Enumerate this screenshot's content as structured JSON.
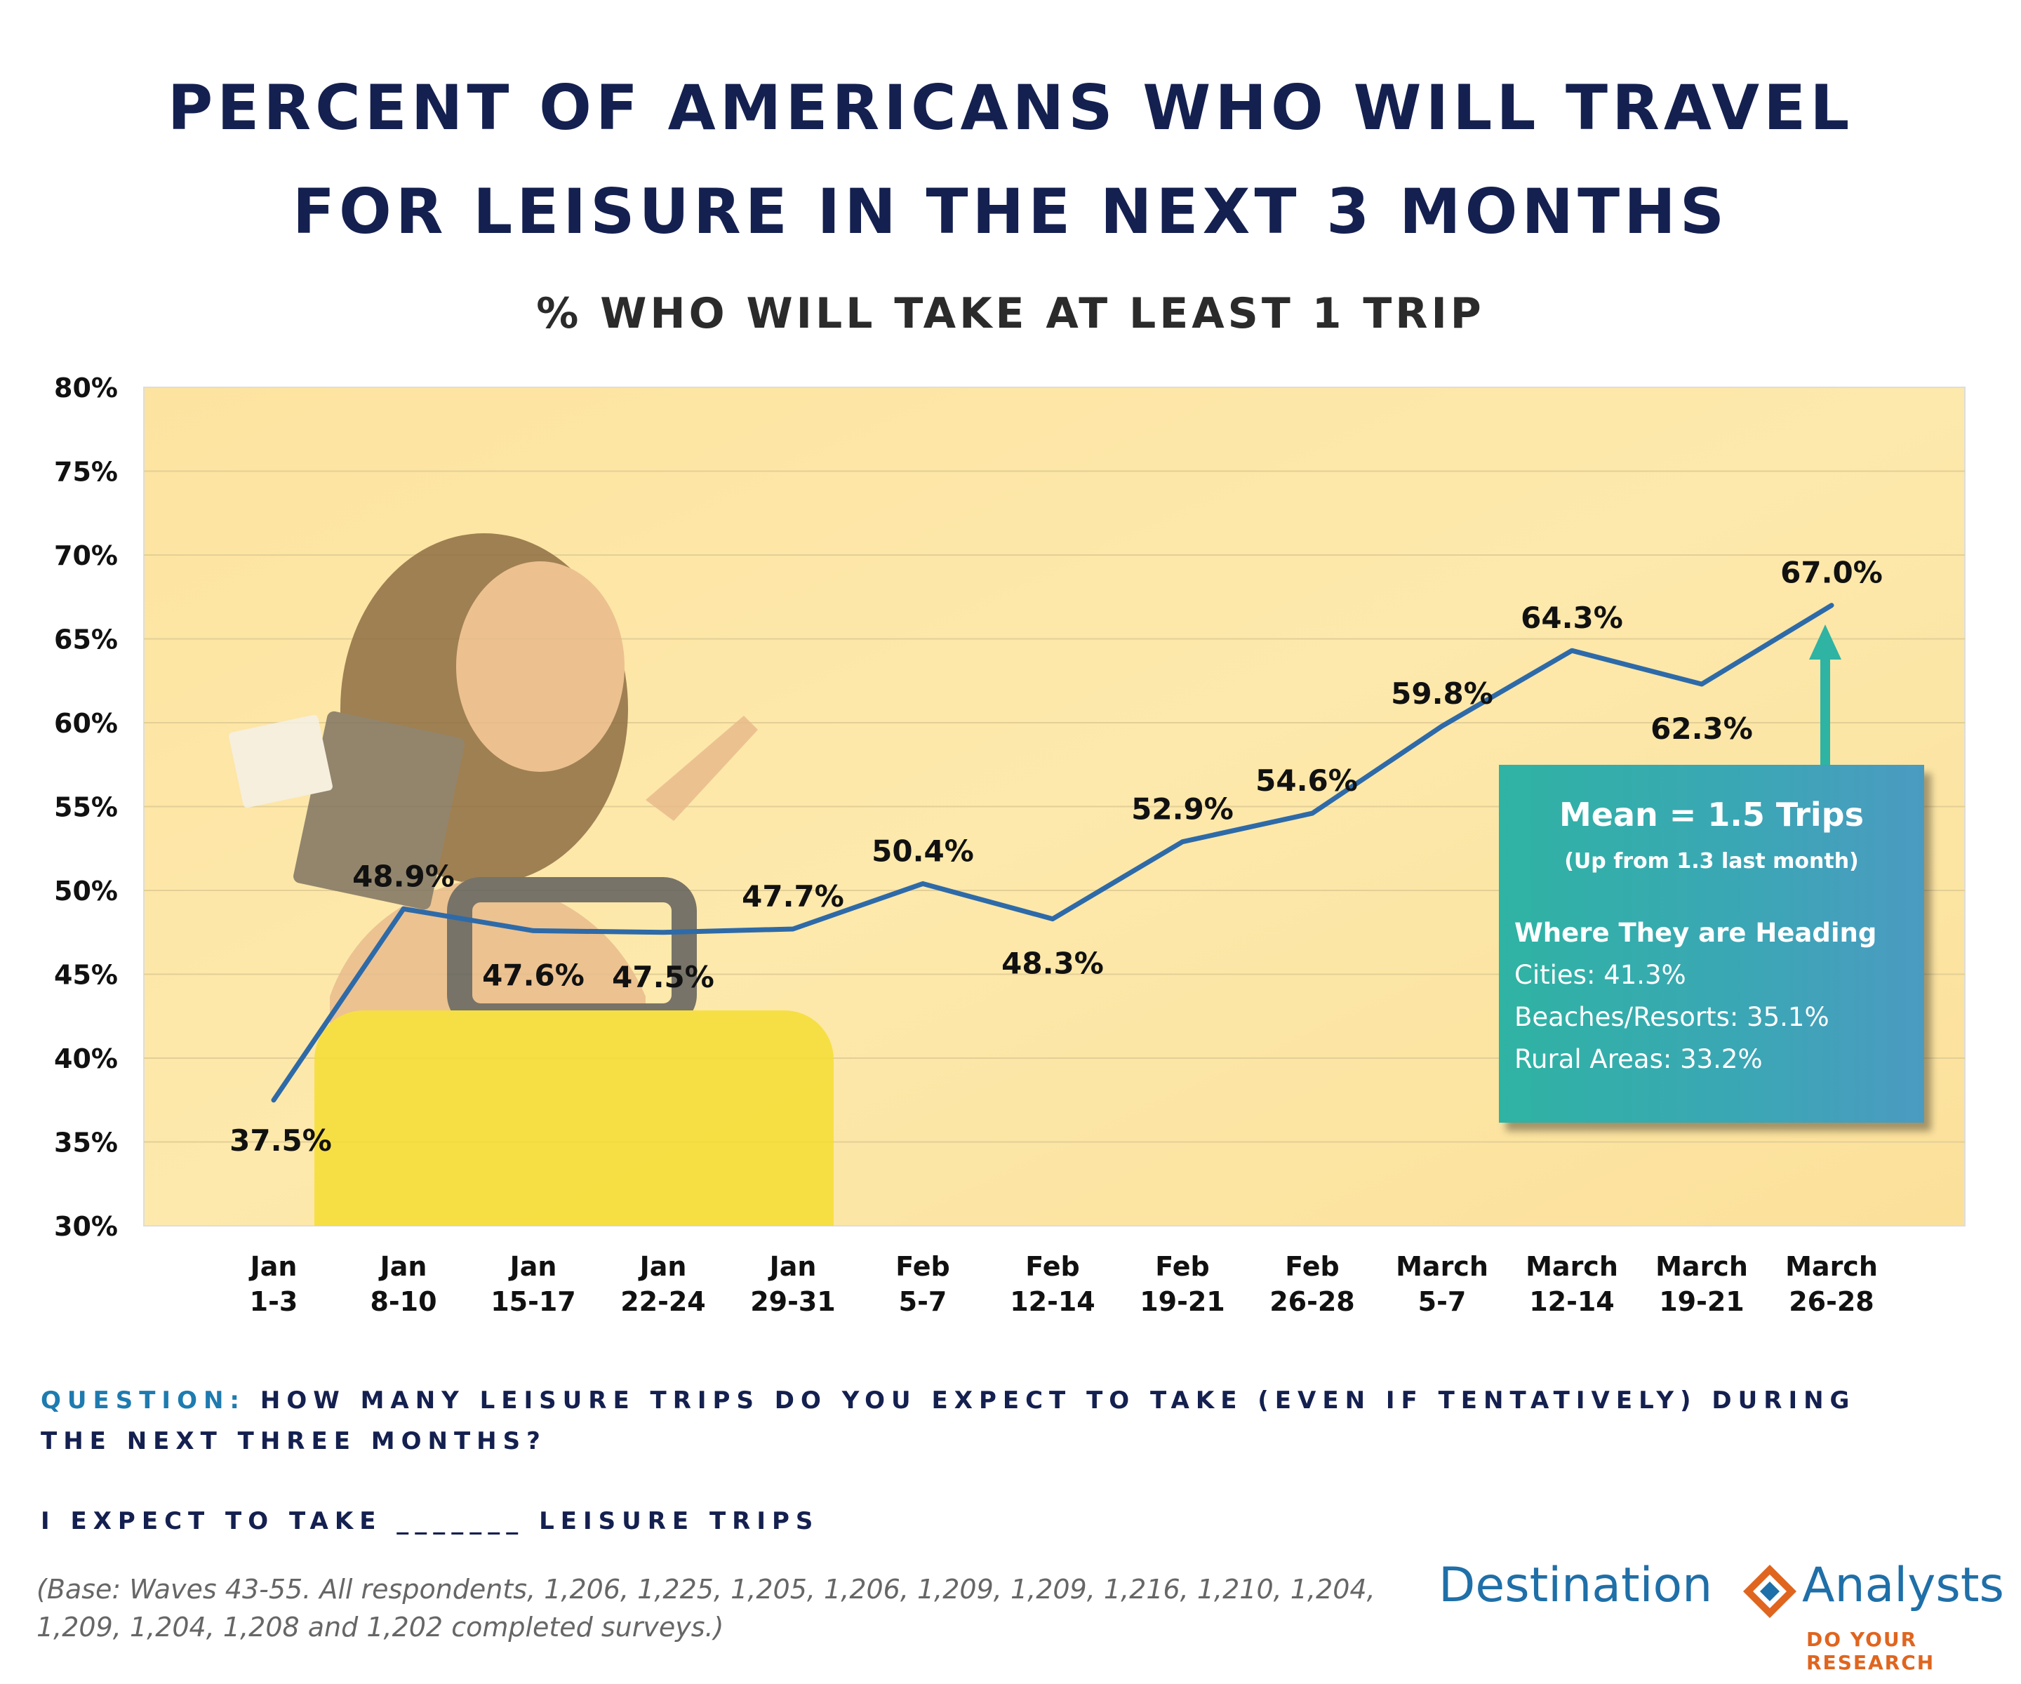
{
  "chart_data": {
    "type": "line",
    "title": "PERCENT OF AMERICANS WHO WILL TRAVEL FOR LEISURE IN THE NEXT 3 MONTHS",
    "title_lines": [
      "PERCENT OF AMERICANS WHO WILL TRAVEL",
      "FOR LEISURE IN THE NEXT 3 MONTHS"
    ],
    "subtitle": "% WHO WILL TAKE AT LEAST 1 TRIP",
    "categories": [
      [
        "Jan",
        "1-3"
      ],
      [
        "Jan",
        "8-10"
      ],
      [
        "Jan",
        "15-17"
      ],
      [
        "Jan",
        "22-24"
      ],
      [
        "Jan",
        "29-31"
      ],
      [
        "Feb",
        "5-7"
      ],
      [
        "Feb",
        "12-14"
      ],
      [
        "Feb",
        "19-21"
      ],
      [
        "Feb",
        "26-28"
      ],
      [
        "March",
        "5-7"
      ],
      [
        "March",
        "12-14"
      ],
      [
        "March",
        "19-21"
      ],
      [
        "March",
        "26-28"
      ]
    ],
    "values": [
      37.5,
      48.9,
      47.6,
      47.5,
      47.7,
      50.4,
      48.3,
      52.9,
      54.6,
      59.8,
      64.3,
      62.3,
      67.0
    ],
    "data_labels": [
      "37.5%",
      "48.9%",
      "47.6%",
      "47.5%",
      "47.7%",
      "50.4%",
      "48.3%",
      "52.9%",
      "54.6%",
      "59.8%",
      "64.3%",
      "62.3%",
      "67.0%"
    ],
    "ylim": [
      30,
      80
    ],
    "y_ticks": [
      30,
      35,
      40,
      45,
      50,
      55,
      60,
      65,
      70,
      75,
      80
    ],
    "y_tick_labels": [
      "30%",
      "35%",
      "40%",
      "45%",
      "50%",
      "55%",
      "60%",
      "65%",
      "70%",
      "75%",
      "80%"
    ],
    "grid": true,
    "line_color": "#2e6aa8"
  },
  "callout": {
    "mean": "Mean = 1.5 Trips",
    "mean_sub": "(Up from 1.3 last month)",
    "heading": "Where They are Heading",
    "items": [
      "Cities: 41.3%",
      "Beaches/Resorts: 35.1%",
      "Rural Areas: 33.2%"
    ]
  },
  "question": {
    "lead": "QUESTION:",
    "line1": "HOW MANY LEISURE TRIPS DO YOU EXPECT TO TAKE (EVEN IF TENTATIVELY) DURING",
    "line2": "THE NEXT THREE MONTHS?",
    "line3": "I EXPECT TO TAKE _______ LEISURE TRIPS"
  },
  "base_note": "(Base: Waves 43-55. All respondents, 1,206, 1,225, 1,205, 1,206, 1,209, 1,209, 1,216, 1,210, 1,204, 1,209, 1,204, 1,208 and 1,202 completed surveys.)",
  "logo": {
    "word1": "Destination",
    "word2": "Analysts",
    "tagline": "DO YOUR RESEARCH",
    "colors": {
      "blue": "#1f6fa8",
      "orange": "#e0651f"
    }
  },
  "colors": {
    "title": "#14204f",
    "accent": "#1e7bb0",
    "callout": "#35adb0",
    "plot_bg": "#fde7a6"
  }
}
